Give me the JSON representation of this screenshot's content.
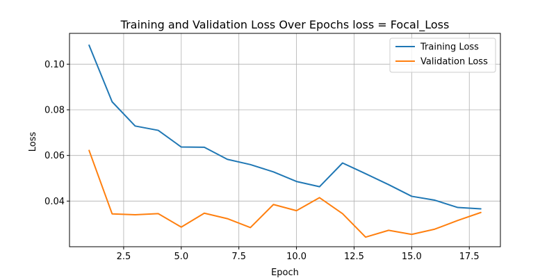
{
  "chart_data": {
    "type": "line",
    "title": "Training and Validation Loss Over Epochs loss = Focal_Loss",
    "xlabel": "Epoch",
    "ylabel": "Loss",
    "xlim": [
      0.15,
      18.85
    ],
    "ylim": [
      0.02,
      0.1135
    ],
    "x_ticks": [
      2.5,
      5.0,
      7.5,
      10.0,
      12.5,
      15.0,
      17.5
    ],
    "x_tick_labels": [
      "2.5",
      "5.0",
      "7.5",
      "10.0",
      "12.5",
      "15.0",
      "17.5"
    ],
    "y_ticks": [
      0.04,
      0.06,
      0.08,
      0.1
    ],
    "y_tick_labels": [
      "0.04",
      "0.06",
      "0.08",
      "0.10"
    ],
    "grid": true,
    "legend_position": "top-right",
    "x": [
      1,
      2,
      3,
      4,
      5,
      6,
      7,
      8,
      9,
      10,
      11,
      12,
      13,
      14,
      15,
      16,
      17,
      18
    ],
    "series": [
      {
        "name": "Training Loss",
        "color": "#1f77b4",
        "values": [
          0.1083,
          0.0835,
          0.0729,
          0.071,
          0.0637,
          0.0636,
          0.0583,
          0.056,
          0.0528,
          0.0486,
          0.0463,
          0.0567,
          0.052,
          0.0472,
          0.0421,
          0.0404,
          0.0372,
          0.0366
        ]
      },
      {
        "name": "Validation Loss",
        "color": "#ff7f0e",
        "values": [
          0.0622,
          0.0344,
          0.034,
          0.0345,
          0.0286,
          0.0347,
          0.0323,
          0.0284,
          0.0385,
          0.0358,
          0.0415,
          0.0345,
          0.0242,
          0.0272,
          0.0254,
          0.0277,
          0.0315,
          0.035
        ]
      }
    ]
  }
}
